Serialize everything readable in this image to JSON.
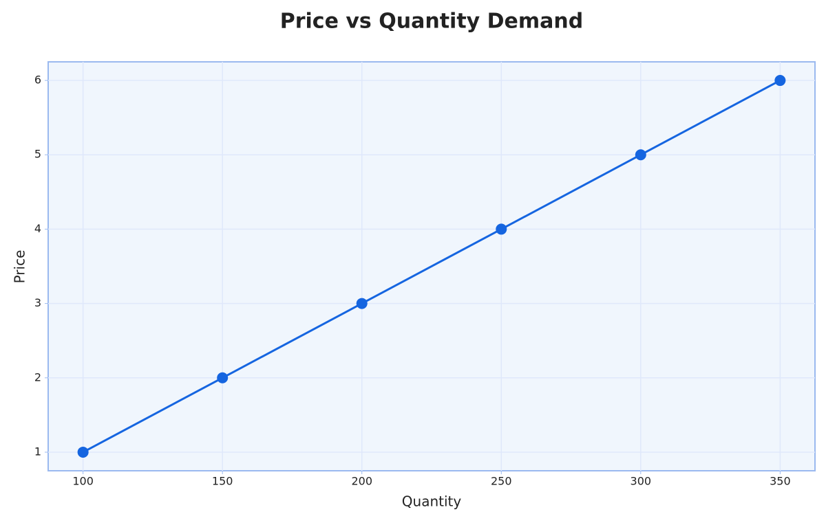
{
  "chart_data": {
    "type": "line",
    "title": "Price vs Quantity Demand",
    "x_label": "Quantity",
    "y_label": "Price",
    "x": [
      100,
      150,
      200,
      250,
      300,
      350
    ],
    "series": [
      {
        "name": "Price",
        "color": "#1565e0",
        "values": [
          1,
          2,
          3,
          4,
          5,
          6
        ]
      }
    ],
    "xlim": [
      87.5,
      362.5
    ],
    "xticks": [
      100,
      150,
      200,
      250,
      300,
      350
    ],
    "ylim": [
      0.75,
      6.25
    ],
    "yticks": [
      1,
      2,
      3,
      4,
      5,
      6
    ],
    "grid": true
  }
}
